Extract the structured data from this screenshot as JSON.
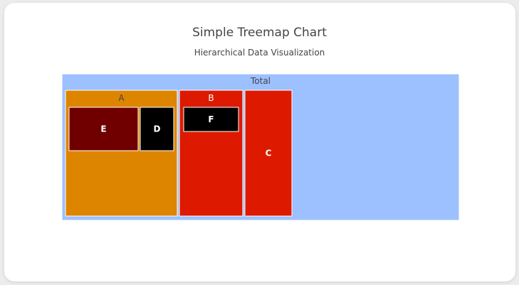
{
  "chart_data": {
    "type": "treemap",
    "title": "Simple Treemap Chart",
    "subtitle": "Hierarchical Data Visualization",
    "nodes": [
      {
        "id": "Total",
        "label": "Total",
        "parent": "",
        "color": "#9dc0ff",
        "text_color": "#444444"
      },
      {
        "id": "A",
        "label": "A",
        "parent": "Total",
        "color": "#de8500",
        "text_color": "#444444"
      },
      {
        "id": "B",
        "label": "B",
        "parent": "Total",
        "color": "#dd1a00",
        "text_color": "#ffffff"
      },
      {
        "id": "C",
        "label": "C",
        "parent": "Total",
        "color": "#dd1a00",
        "text_color": "#ffffff"
      },
      {
        "id": "E",
        "label": "E",
        "parent": "A",
        "color": "#700000",
        "text_color": "#ffffff"
      },
      {
        "id": "D",
        "label": "D",
        "parent": "A",
        "color": "#000000",
        "text_color": "#ffffff"
      },
      {
        "id": "F",
        "label": "F",
        "parent": "B",
        "color": "#000000",
        "text_color": "#ffffff"
      }
    ]
  }
}
